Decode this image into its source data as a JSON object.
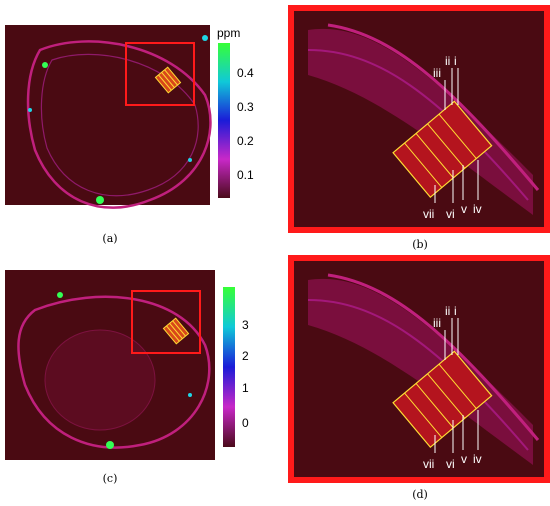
{
  "figure": {
    "panels": [
      {
        "caption": "(a)"
      },
      {
        "caption": "(b)"
      },
      {
        "caption": "(c)"
      },
      {
        "caption": "(d)"
      }
    ],
    "colorbar_top": {
      "unit": "ppm",
      "ticks": [
        "0.4",
        "0.3",
        "0.2",
        "0.1"
      ],
      "gradient": [
        "#ffffff",
        "#36ff36",
        "#10c9d8",
        "#1b1bd8",
        "#c828c8",
        "#4a0a1a"
      ]
    },
    "colorbar_bottom": {
      "ticks": [
        "3",
        "2",
        "1",
        "0"
      ],
      "gradient": [
        "#36ff36",
        "#10c9d8",
        "#1b1bd8",
        "#c828c8",
        "#4a0a1a"
      ]
    },
    "layer_labels_top": [
      "iii",
      "ii",
      "i"
    ],
    "layer_labels_bottom": [
      "vii",
      "vi",
      "v",
      "iv"
    ],
    "colors": {
      "background": "#4a0a12",
      "highlight_box": "#ff1a1a",
      "roi_stripes": "#ffdd33",
      "tissue": "#b0188a"
    }
  }
}
